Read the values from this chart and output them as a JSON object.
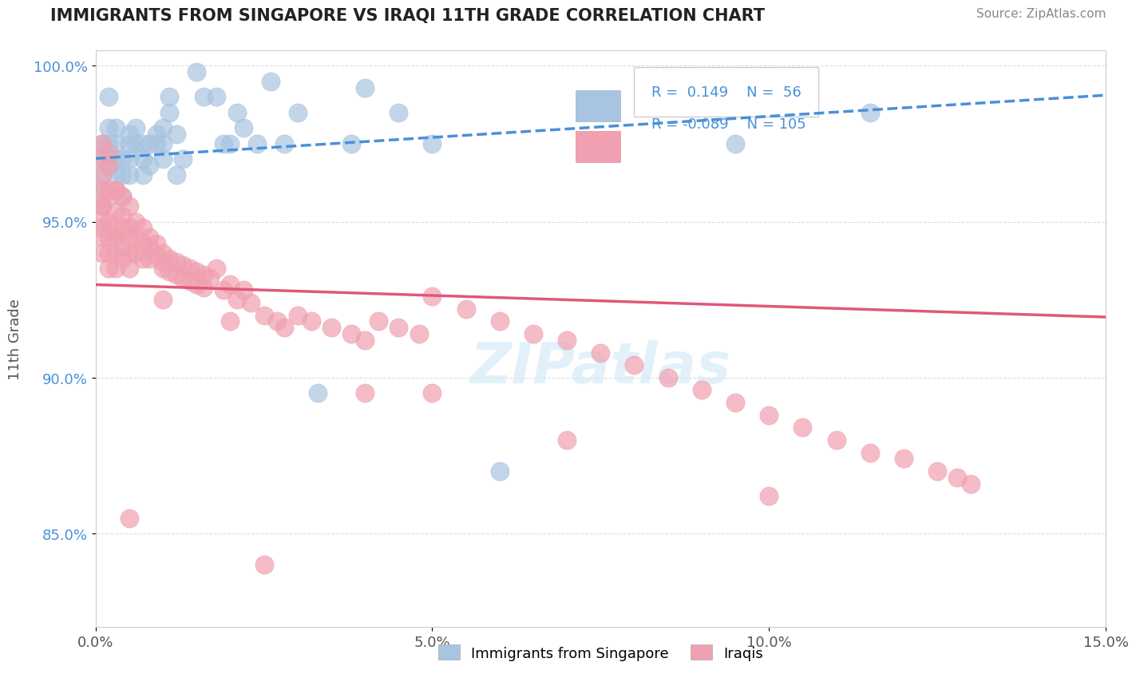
{
  "title": "IMMIGRANTS FROM SINGAPORE VS IRAQI 11TH GRADE CORRELATION CHART",
  "source": "Source: ZipAtlas.com",
  "xlabel_bottom": "",
  "ylabel": "11th Grade",
  "xlim": [
    0.0,
    0.15
  ],
  "ylim": [
    0.82,
    1.005
  ],
  "yticks": [
    0.85,
    0.9,
    0.95,
    1.0
  ],
  "ytick_labels": [
    "85.0%",
    "90.0%",
    "95.0%",
    "100.0%"
  ],
  "xticks": [
    0.0,
    0.05,
    0.1,
    0.15
  ],
  "xtick_labels": [
    "0.0%",
    "5.0%",
    "10.0%",
    "15.0%"
  ],
  "singapore_R": 0.149,
  "singapore_N": 56,
  "iraqi_R": -0.089,
  "iraqi_N": 105,
  "singapore_color": "#a8c4e0",
  "iraqi_color": "#f0a0b0",
  "singapore_line_color": "#4a90d9",
  "iraqi_line_color": "#e05878",
  "watermark": "ZIPatlas",
  "legend_label_singapore": "Immigrants from Singapore",
  "legend_label_iraqi": "Iraqis",
  "singapore_x": [
    0.001,
    0.001,
    0.001,
    0.001,
    0.001,
    0.002,
    0.002,
    0.002,
    0.002,
    0.003,
    0.003,
    0.003,
    0.003,
    0.004,
    0.004,
    0.004,
    0.005,
    0.005,
    0.005,
    0.005,
    0.006,
    0.006,
    0.007,
    0.007,
    0.007,
    0.008,
    0.008,
    0.009,
    0.009,
    0.01,
    0.01,
    0.01,
    0.011,
    0.011,
    0.012,
    0.012,
    0.013,
    0.015,
    0.016,
    0.018,
    0.019,
    0.02,
    0.021,
    0.022,
    0.024,
    0.026,
    0.028,
    0.03,
    0.033,
    0.038,
    0.04,
    0.045,
    0.05,
    0.06,
    0.095,
    0.115
  ],
  "singapore_y": [
    0.965,
    0.96,
    0.955,
    0.975,
    0.97,
    0.968,
    0.975,
    0.98,
    0.99,
    0.975,
    0.97,
    0.965,
    0.98,
    0.97,
    0.958,
    0.965,
    0.975,
    0.97,
    0.965,
    0.978,
    0.975,
    0.98,
    0.975,
    0.97,
    0.965,
    0.975,
    0.968,
    0.978,
    0.975,
    0.975,
    0.98,
    0.97,
    0.99,
    0.985,
    0.978,
    0.965,
    0.97,
    0.998,
    0.99,
    0.99,
    0.975,
    0.975,
    0.985,
    0.98,
    0.975,
    0.995,
    0.975,
    0.985,
    0.895,
    0.975,
    0.993,
    0.985,
    0.975,
    0.87,
    0.975,
    0.985
  ],
  "iraqi_x": [
    0.001,
    0.001,
    0.001,
    0.001,
    0.001,
    0.001,
    0.001,
    0.001,
    0.001,
    0.001,
    0.002,
    0.002,
    0.002,
    0.002,
    0.002,
    0.002,
    0.002,
    0.002,
    0.003,
    0.003,
    0.003,
    0.003,
    0.003,
    0.003,
    0.004,
    0.004,
    0.004,
    0.004,
    0.004,
    0.005,
    0.005,
    0.005,
    0.005,
    0.005,
    0.006,
    0.006,
    0.006,
    0.007,
    0.007,
    0.007,
    0.008,
    0.008,
    0.008,
    0.009,
    0.009,
    0.01,
    0.01,
    0.01,
    0.011,
    0.011,
    0.012,
    0.012,
    0.013,
    0.013,
    0.014,
    0.014,
    0.015,
    0.015,
    0.016,
    0.016,
    0.017,
    0.018,
    0.019,
    0.02,
    0.021,
    0.022,
    0.023,
    0.025,
    0.027,
    0.028,
    0.03,
    0.032,
    0.035,
    0.038,
    0.04,
    0.042,
    0.045,
    0.048,
    0.05,
    0.055,
    0.06,
    0.065,
    0.07,
    0.075,
    0.08,
    0.085,
    0.09,
    0.095,
    0.1,
    0.105,
    0.11,
    0.115,
    0.12,
    0.125,
    0.128,
    0.13,
    0.1,
    0.07,
    0.04,
    0.02,
    0.01,
    0.005,
    0.003,
    0.05,
    0.025
  ],
  "iraqi_y": [
    0.96,
    0.955,
    0.95,
    0.97,
    0.975,
    0.965,
    0.948,
    0.955,
    0.945,
    0.94,
    0.958,
    0.968,
    0.972,
    0.96,
    0.95,
    0.945,
    0.94,
    0.935,
    0.96,
    0.953,
    0.947,
    0.945,
    0.94,
    0.935,
    0.958,
    0.952,
    0.948,
    0.942,
    0.938,
    0.955,
    0.948,
    0.945,
    0.94,
    0.935,
    0.95,
    0.945,
    0.94,
    0.948,
    0.943,
    0.938,
    0.945,
    0.942,
    0.938,
    0.943,
    0.939,
    0.94,
    0.937,
    0.935,
    0.938,
    0.934,
    0.937,
    0.933,
    0.936,
    0.932,
    0.935,
    0.931,
    0.934,
    0.93,
    0.933,
    0.929,
    0.932,
    0.935,
    0.928,
    0.93,
    0.925,
    0.928,
    0.924,
    0.92,
    0.918,
    0.916,
    0.92,
    0.918,
    0.916,
    0.914,
    0.912,
    0.918,
    0.916,
    0.914,
    0.926,
    0.922,
    0.918,
    0.914,
    0.912,
    0.908,
    0.904,
    0.9,
    0.896,
    0.892,
    0.888,
    0.884,
    0.88,
    0.876,
    0.874,
    0.87,
    0.868,
    0.866,
    0.862,
    0.88,
    0.895,
    0.918,
    0.925,
    0.855,
    0.96,
    0.895,
    0.84
  ]
}
